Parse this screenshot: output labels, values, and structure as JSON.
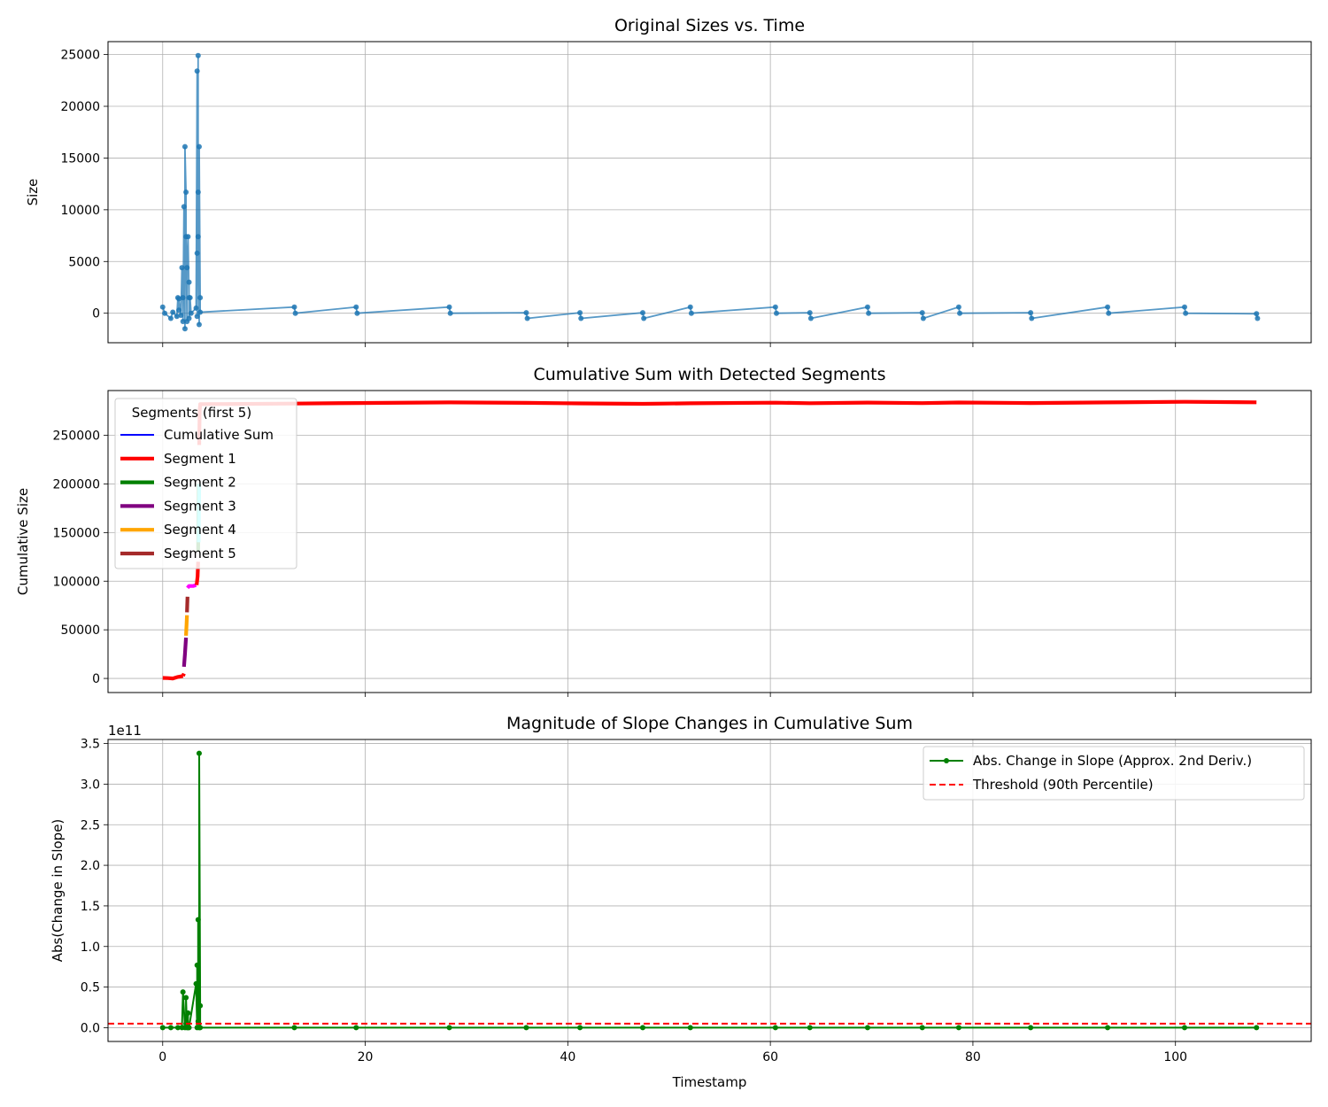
{
  "chart_data": [
    {
      "type": "line",
      "title": "Original Sizes vs. Time",
      "xlabel": "",
      "ylabel": "Size",
      "xlim": [
        -5.4,
        113.4
      ],
      "ylim": [
        -2850,
        26250
      ],
      "xticks": [
        0,
        20,
        40,
        60,
        80,
        100
      ],
      "xtick_labels": [],
      "yticks": [
        0,
        5000,
        10000,
        15000,
        20000,
        25000
      ],
      "ytick_labels": [
        "0",
        "5000",
        "10000",
        "15000",
        "20000",
        "25000"
      ],
      "grid": true,
      "color": "#1f77b4",
      "series": [
        {
          "x": [
            0,
            0.2,
            0.8,
            1.0,
            1.4,
            1.5,
            1.6,
            1.6,
            1.8,
            1.9,
            2.0,
            2.0,
            2.1,
            2.2,
            2.2,
            2.3,
            2.3,
            2.4,
            2.4,
            2.5,
            2.6,
            2.6,
            2.6,
            2.7,
            2.8,
            3.3,
            3.4,
            3.4,
            3.4,
            3.5,
            3.5,
            3.5,
            3.6,
            3.6,
            3.7,
            3.7,
            13.0,
            13.1,
            19.1,
            19.2,
            28.3,
            28.4,
            35.9,
            36.0,
            41.2,
            41.3,
            47.4,
            47.5,
            52.1,
            52.2,
            60.5,
            60.6,
            63.9,
            64.0,
            69.6,
            69.7,
            75.0,
            75.1,
            78.6,
            78.7,
            85.7,
            85.8,
            93.3,
            93.4,
            100.9,
            101.0,
            108.0,
            108.1
          ],
          "y": [
            600,
            0,
            -500,
            100,
            -300,
            1500,
            300,
            1400,
            -200,
            4400,
            1500,
            -800,
            10300,
            -1500,
            16100,
            11700,
            7400,
            -800,
            4400,
            7400,
            1500,
            3000,
            -500,
            1500,
            0,
            500,
            23400,
            5800,
            -300,
            24900,
            7400,
            11700,
            -1100,
            16100,
            1500,
            100,
            600,
            0,
            600,
            0,
            600,
            0,
            50,
            -500,
            50,
            -500,
            50,
            -500,
            600,
            0,
            600,
            0,
            50,
            -500,
            600,
            0,
            50,
            -500,
            600,
            0,
            50,
            -500,
            600,
            0,
            600,
            0,
            -50,
            -500
          ]
        }
      ]
    },
    {
      "type": "line",
      "title": "Cumulative Sum with Detected Segments",
      "xlabel": "",
      "ylabel": "Cumulative Size",
      "xlim": [
        -5.4,
        113.4
      ],
      "ylim": [
        -14500,
        296000
      ],
      "xticks": [
        0,
        20,
        40,
        60,
        80,
        100
      ],
      "xtick_labels": [],
      "yticks": [
        0,
        50000,
        100000,
        150000,
        200000,
        250000
      ],
      "ytick_labels": [
        "0",
        "50000",
        "100000",
        "150000",
        "200000",
        "250000"
      ],
      "grid": true,
      "legend": {
        "title": "Segments (first 5)",
        "position": "upper-left",
        "entries": [
          {
            "label": "Cumulative Sum",
            "color": "#0000ff"
          },
          {
            "label": "Segment 1",
            "color": "#ff0000"
          },
          {
            "label": "Segment 2",
            "color": "#008000"
          },
          {
            "label": "Segment 3",
            "color": "#800080"
          },
          {
            "label": "Segment 4",
            "color": "#ffa500"
          },
          {
            "label": "Segment 5",
            "color": "#a52a2a"
          }
        ]
      },
      "series": [
        {
          "name": "Segment 1",
          "color": "#ff0000",
          "x": [
            0,
            0.5,
            1.0,
            1.5,
            2.0
          ],
          "y": [
            500,
            300,
            0,
            1500,
            2500
          ]
        },
        {
          "name": "Segment 1",
          "color": "#ff0000",
          "x": [
            2.0,
            2.1
          ],
          "y": [
            2500,
            5000
          ]
        },
        {
          "name": "Segment 3",
          "color": "#800080",
          "x": [
            2.1,
            2.2,
            2.3
          ],
          "y": [
            12000,
            25000,
            42000
          ]
        },
        {
          "name": "Segment 4",
          "color": "#ffa500",
          "x": [
            2.3,
            2.35,
            2.4
          ],
          "y": [
            44000,
            55000,
            65000
          ]
        },
        {
          "name": "Segment 5",
          "color": "#a52a2a",
          "x": [
            2.4,
            2.45
          ],
          "y": [
            68000,
            84000
          ]
        },
        {
          "name": "Segment",
          "color": "#ff00ff",
          "x": [
            2.45,
            2.6,
            3.0,
            3.3
          ],
          "y": [
            93000,
            95000,
            95000,
            96000
          ]
        },
        {
          "name": "Segment 1",
          "color": "#ff0000",
          "x": [
            3.35,
            3.45,
            3.5
          ],
          "y": [
            96000,
            105000,
            120000
          ]
        },
        {
          "name": "Segment 2",
          "color": "#008000",
          "x": [
            3.5,
            3.55
          ],
          "y": [
            130000,
            200000
          ]
        },
        {
          "name": "Segment",
          "color": "#00ffff",
          "x": [
            3.55,
            3.6
          ],
          "y": [
            140000,
            200000
          ]
        },
        {
          "name": "Segment 1",
          "color": "#ff0000",
          "x": [
            3.6,
            3.65,
            3.7,
            13.0,
            19.1,
            28.3,
            35.9,
            41.2,
            47.4,
            52.1,
            60.5,
            63.9,
            69.6,
            75.0,
            78.6,
            85.7,
            93.3,
            100.9,
            108.0
          ],
          "y": [
            240000,
            275000,
            282000,
            282600,
            283200,
            283800,
            283300,
            282800,
            282300,
            282900,
            283500,
            283000,
            283600,
            283100,
            283700,
            283200,
            283800,
            284400,
            283900
          ]
        }
      ]
    },
    {
      "type": "line",
      "title": "Magnitude of Slope Changes in Cumulative Sum",
      "xlabel": "Timestamp",
      "ylabel": "Abs(Change in Slope)",
      "offset_text": "1e11",
      "xlim": [
        -5.4,
        113.4
      ],
      "ylim": [
        -0.17,
        3.55
      ],
      "xticks": [
        0,
        20,
        40,
        60,
        80,
        100
      ],
      "xtick_labels": [
        "0",
        "20",
        "40",
        "60",
        "80",
        "100"
      ],
      "yticks": [
        0,
        0.5,
        1.0,
        1.5,
        2.0,
        2.5,
        3.0,
        3.5
      ],
      "ytick_labels": [
        "0.0",
        "0.5",
        "1.0",
        "1.5",
        "2.0",
        "2.5",
        "3.0",
        "3.5"
      ],
      "grid": true,
      "legend": {
        "position": "upper-right",
        "entries": [
          {
            "label": "Abs. Change in Slope (Approx. 2nd Deriv.)",
            "color": "#008000",
            "style": "solid-marker"
          },
          {
            "label": "Threshold (90th Percentile)",
            "color": "#ff0000",
            "style": "dashed"
          }
        ]
      },
      "threshold": 0.05,
      "series": [
        {
          "name": "Abs. Change in Slope (Approx. 2nd Deriv.)",
          "color": "#008000",
          "x": [
            0,
            0.8,
            1.5,
            1.9,
            2.0,
            2.2,
            2.3,
            2.3,
            2.4,
            2.5,
            2.5,
            2.6,
            3.3,
            3.4,
            3.4,
            3.5,
            3.5,
            3.6,
            3.6,
            3.7,
            3.7,
            13.0,
            19.1,
            28.3,
            35.9,
            41.2,
            47.4,
            52.1,
            60.5,
            63.9,
            69.6,
            75.0,
            78.6,
            85.7,
            93.3,
            100.9,
            108.0
          ],
          "y": [
            0,
            0,
            0,
            0,
            0.44,
            0,
            0.05,
            0.37,
            0,
            0.18,
            0,
            0,
            0.54,
            0,
            0.77,
            0.08,
            1.33,
            0,
            3.38,
            0.27,
            0,
            0,
            0,
            0,
            0,
            0,
            0,
            0,
            0,
            0,
            0,
            0,
            0,
            0,
            0,
            0,
            0
          ]
        }
      ]
    }
  ]
}
